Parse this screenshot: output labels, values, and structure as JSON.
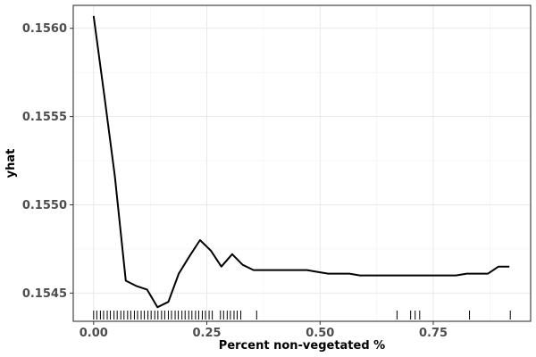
{
  "chart_data": {
    "type": "line",
    "xlabel": "Percent non-vegetated %",
    "ylabel": "yhat",
    "xlim": [
      -0.045,
      0.965
    ],
    "ylim": [
      0.15434,
      0.15613
    ],
    "grid": true,
    "legend": "none",
    "x_ticks": [
      {
        "value": 0.0,
        "label": "0.00"
      },
      {
        "value": 0.25,
        "label": "0.25"
      },
      {
        "value": 0.5,
        "label": "0.50"
      },
      {
        "value": 0.75,
        "label": "0.75"
      }
    ],
    "y_ticks": [
      {
        "value": 0.1545,
        "label": "0.1545"
      },
      {
        "value": 0.155,
        "label": "0.1550"
      },
      {
        "value": 0.1555,
        "label": "0.1555"
      },
      {
        "value": 0.156,
        "label": "0.1560"
      }
    ],
    "series": [
      {
        "color": "#000000",
        "x": [
          0.0,
          0.024,
          0.047,
          0.071,
          0.094,
          0.118,
          0.141,
          0.165,
          0.188,
          0.212,
          0.235,
          0.259,
          0.282,
          0.306,
          0.329,
          0.353,
          0.376,
          0.4,
          0.424,
          0.447,
          0.471,
          0.494,
          0.518,
          0.541,
          0.565,
          0.588,
          0.612,
          0.635,
          0.659,
          0.682,
          0.706,
          0.729,
          0.753,
          0.776,
          0.8,
          0.824,
          0.847,
          0.871,
          0.894,
          0.918
        ],
        "y": [
          0.15607,
          0.15561,
          0.15516,
          0.15457,
          0.15454,
          0.15452,
          0.15442,
          0.15445,
          0.15461,
          0.15471,
          0.1548,
          0.15474,
          0.15465,
          0.15472,
          0.15466,
          0.15463,
          0.15463,
          0.15463,
          0.15463,
          0.15463,
          0.15463,
          0.15462,
          0.15461,
          0.15461,
          0.15461,
          0.1546,
          0.1546,
          0.1546,
          0.1546,
          0.1546,
          0.1546,
          0.1546,
          0.1546,
          0.1546,
          0.1546,
          0.15461,
          0.15461,
          0.15461,
          0.15465,
          0.15465
        ]
      }
    ],
    "rug": [
      0.0,
      0.007,
      0.015,
      0.022,
      0.03,
      0.037,
      0.045,
      0.052,
      0.06,
      0.067,
      0.075,
      0.082,
      0.09,
      0.097,
      0.105,
      0.112,
      0.12,
      0.127,
      0.135,
      0.142,
      0.15,
      0.157,
      0.165,
      0.172,
      0.18,
      0.187,
      0.195,
      0.202,
      0.21,
      0.217,
      0.225,
      0.232,
      0.24,
      0.247,
      0.255,
      0.262,
      0.28,
      0.287,
      0.295,
      0.302,
      0.31,
      0.317,
      0.325,
      0.36,
      0.67,
      0.7,
      0.71,
      0.72,
      0.83,
      0.92
    ]
  }
}
